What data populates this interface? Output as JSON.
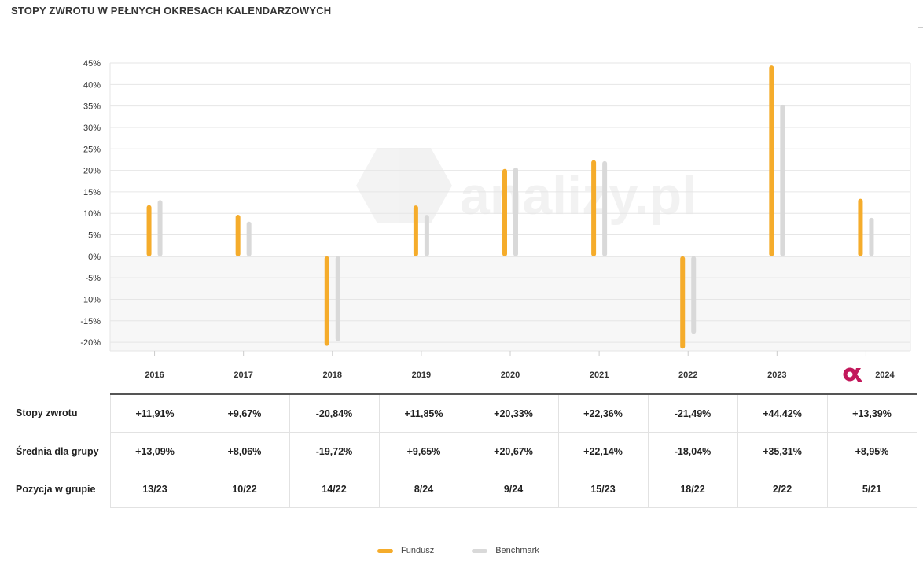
{
  "title": "STOPY ZWROTU W PEŁNYCH OKRESACH KALENDARZOWYCH",
  "watermark": "analizy.pl",
  "colors": {
    "fund": "#f5ac2b",
    "benchmark": "#d9d9d9",
    "negative_bg": "#f7f7f7",
    "grid": "#e6e6e6"
  },
  "chart_data": {
    "type": "bar",
    "categories": [
      "2016",
      "2017",
      "2018",
      "2019",
      "2020",
      "2021",
      "2022",
      "2023",
      "2024"
    ],
    "series": [
      {
        "name": "Fundusz",
        "values": [
          11.91,
          9.67,
          -20.84,
          11.85,
          20.33,
          22.36,
          -21.49,
          44.42,
          13.39
        ]
      },
      {
        "name": "Benchmark",
        "values": [
          13.09,
          8.06,
          -19.72,
          9.65,
          20.67,
          22.14,
          -18.04,
          35.31,
          8.95
        ]
      }
    ],
    "y_ticks": [
      "45%",
      "40%",
      "35%",
      "30%",
      "25%",
      "20%",
      "15%",
      "10%",
      "5%",
      "0%",
      "-5%",
      "-10%",
      "-15%",
      "-20%"
    ],
    "ylim": [
      -22,
      45
    ],
    "legend_position": "bottom-center",
    "grid": true
  },
  "table": {
    "rows": [
      {
        "label": "Stopy zwrotu",
        "values": [
          "+11,91%",
          "+9,67%",
          "-20,84%",
          "+11,85%",
          "+20,33%",
          "+22,36%",
          "-21,49%",
          "+44,42%",
          "+13,39%"
        ]
      },
      {
        "label": "Średnia dla grupy",
        "values": [
          "+13,09%",
          "+8,06%",
          "-19,72%",
          "+9,65%",
          "+20,67%",
          "+22,14%",
          "-18,04%",
          "+35,31%",
          "+8,95%"
        ]
      },
      {
        "label": "Pozycja w grupie",
        "values": [
          "13/23",
          "10/22",
          "14/22",
          "8/24",
          "9/24",
          "15/23",
          "18/22",
          "2/22",
          "5/21"
        ]
      }
    ]
  },
  "legend": [
    {
      "label": "Fundusz",
      "color": "#f5ac2b"
    },
    {
      "label": "Benchmark",
      "color": "#d9d9d9"
    }
  ],
  "badge_icon": "ok-logo-icon"
}
